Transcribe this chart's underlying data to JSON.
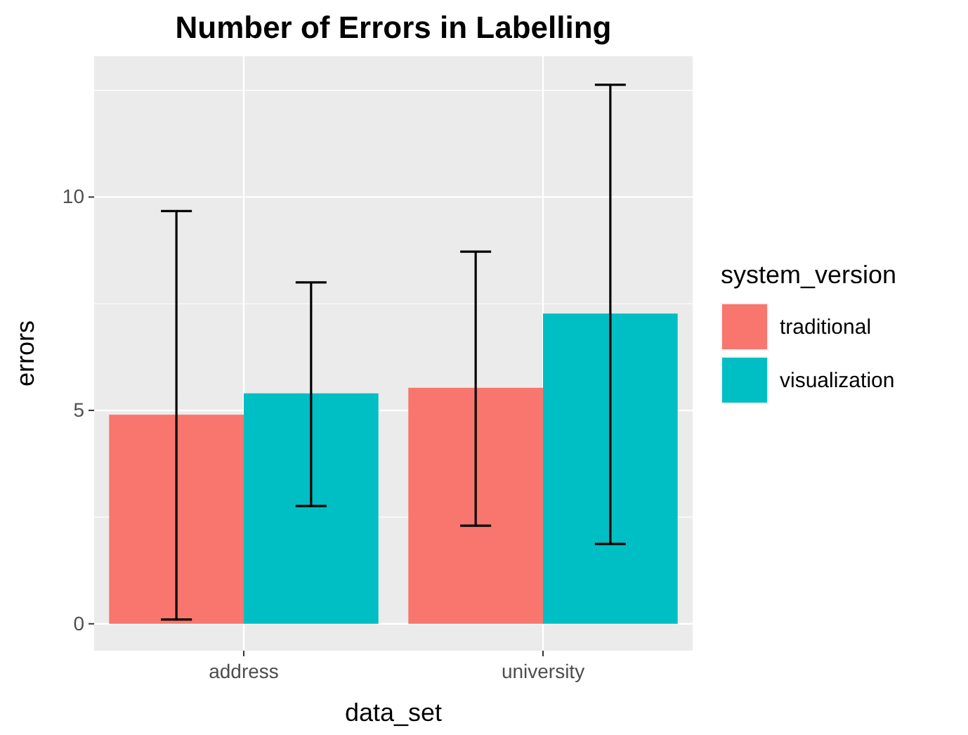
{
  "chart_data": {
    "type": "bar",
    "title": "Number of Errors in Labelling",
    "xlabel": "data_set",
    "ylabel": "errors",
    "legend_title": "system_version",
    "categories": [
      "address",
      "university"
    ],
    "series": [
      {
        "name": "traditional",
        "color": "#f8766d",
        "values": [
          4.9,
          5.53
        ],
        "errors": [
          [
            0.1,
            9.67
          ],
          [
            2.3,
            8.72
          ]
        ]
      },
      {
        "name": "visualization",
        "color": "#00bfc4",
        "values": [
          5.4,
          7.27
        ],
        "errors": [
          [
            2.76,
            8.0
          ],
          [
            1.87,
            12.63
          ]
        ]
      }
    ],
    "ylim": [
      -0.63,
      13.3
    ],
    "yticks": [
      0,
      5,
      10
    ],
    "grid": true,
    "legend": "right"
  }
}
